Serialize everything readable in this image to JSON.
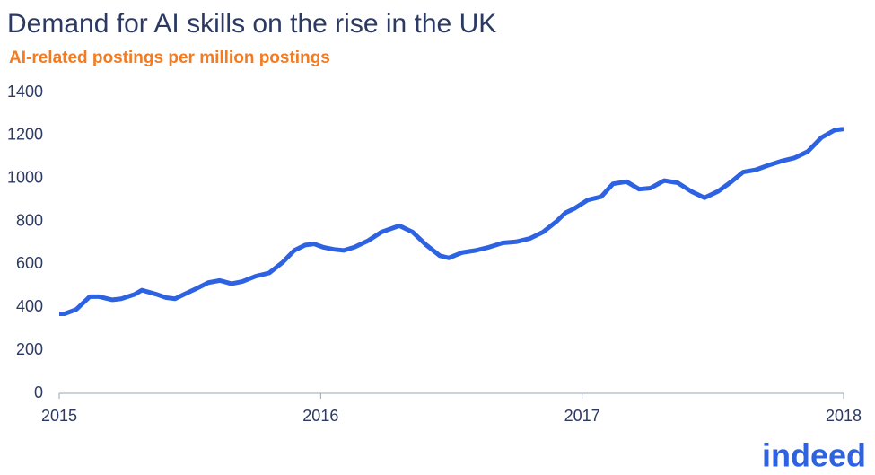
{
  "chart_data": {
    "type": "line",
    "title": "Demand for AI skills on the rise in the UK",
    "subtitle": "AI-related postings per million postings",
    "x": [
      2015.0,
      2015.021,
      2015.065,
      2015.117,
      2015.151,
      2015.203,
      2015.237,
      2015.288,
      2015.316,
      2015.374,
      2015.409,
      2015.443,
      2015.477,
      2015.529,
      2015.57,
      2015.614,
      2015.659,
      2015.7,
      2015.752,
      2015.803,
      2015.855,
      2015.899,
      2015.941,
      2015.975,
      2016.009,
      2016.05,
      2016.088,
      2016.129,
      2016.181,
      2016.232,
      2016.301,
      2016.352,
      2016.404,
      2016.456,
      2016.49,
      2016.541,
      2016.593,
      2016.644,
      2016.696,
      2016.747,
      2016.799,
      2016.85,
      2016.902,
      2016.936,
      2016.97,
      2017.022,
      2017.073,
      2017.118,
      2017.17,
      2017.218,
      2017.262,
      2017.314,
      2017.365,
      2017.417,
      2017.468,
      2017.52,
      2017.571,
      2017.616,
      2017.664,
      2017.709,
      2017.76,
      2017.811,
      2017.863,
      2017.915,
      2017.966,
      2018.0
    ],
    "series": [
      {
        "name": "AI-related postings",
        "color": "#2d62e3",
        "values": [
          370,
          370,
          390,
          450,
          450,
          435,
          440,
          460,
          480,
          460,
          445,
          440,
          460,
          490,
          515,
          525,
          510,
          520,
          545,
          560,
          610,
          665,
          690,
          695,
          680,
          670,
          665,
          680,
          710,
          750,
          780,
          750,
          690,
          640,
          630,
          655,
          665,
          680,
          700,
          705,
          720,
          750,
          800,
          840,
          860,
          900,
          915,
          975,
          985,
          950,
          955,
          990,
          980,
          940,
          910,
          940,
          985,
          1030,
          1040,
          1060,
          1080,
          1095,
          1125,
          1190,
          1225,
          1230
        ]
      }
    ],
    "xlim": [
      2015,
      2018
    ],
    "xticks": [
      2015,
      2016,
      2017,
      2018
    ],
    "ylim": [
      0,
      1400
    ],
    "yticks": [
      0,
      200,
      400,
      600,
      800,
      1000,
      1200,
      1400
    ],
    "grid": false
  },
  "logo": "indeed"
}
